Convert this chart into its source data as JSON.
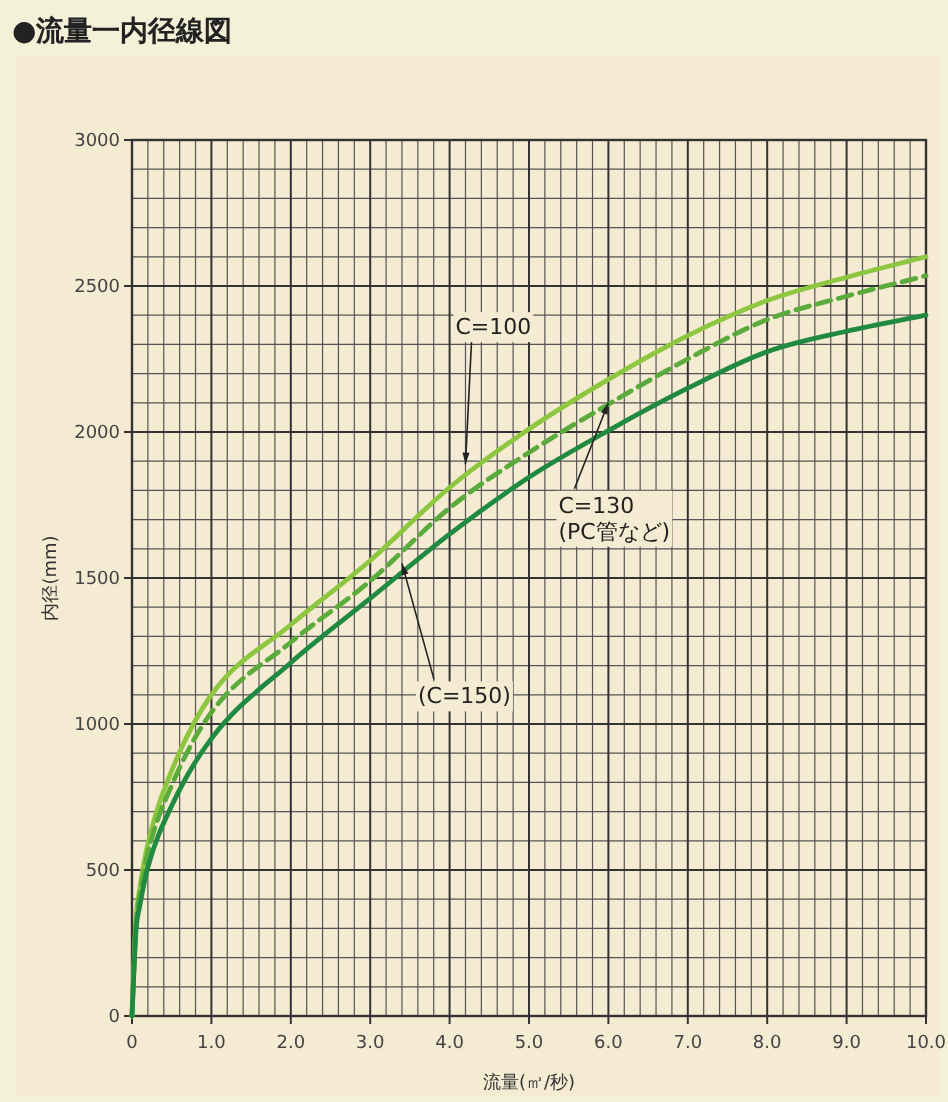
{
  "chart_data": {
    "type": "line",
    "title": "●流量一内径線図",
    "xlabel": "流量(㎥/秒)",
    "ylabel": "内径(mm)",
    "xlim": [
      0,
      10
    ],
    "ylim": [
      0,
      3000
    ],
    "xticks": [
      0,
      {
        "value": 1,
        "label": "1.0"
      },
      {
        "value": 2,
        "label": "2.0"
      },
      {
        "value": 3,
        "label": "3.0"
      },
      {
        "value": 4,
        "label": "4.0"
      },
      {
        "value": 5,
        "label": "5.0"
      },
      {
        "value": 6,
        "label": "6.0"
      },
      {
        "value": 7,
        "label": "7.0"
      },
      {
        "value": 8,
        "label": "8.0"
      },
      {
        "value": 9,
        "label": "9.0"
      },
      {
        "value": 10,
        "label": "10.0"
      }
    ],
    "yticks": [
      0,
      500,
      1000,
      1500,
      2000,
      2500,
      3000
    ],
    "grid": true,
    "marker": "none",
    "x": [
      0,
      0.05,
      0.1,
      0.2,
      0.5,
      1,
      2,
      3,
      4,
      5,
      6,
      7,
      8,
      9,
      10
    ],
    "series": [
      {
        "color": "#8dc63f",
        "line_style": "solid",
        "values": [
          0,
          330,
          440,
          590,
          840,
          1100,
          1340,
          1560,
          1810,
          2010,
          2180,
          2330,
          2450,
          2530,
          2600
        ]
      },
      {
        "color": "#5aab3c",
        "line_style": "dashed",
        "values": [
          0,
          315,
          415,
          560,
          790,
          1040,
          1280,
          1490,
          1740,
          1930,
          2095,
          2250,
          2385,
          2465,
          2535
        ]
      },
      {
        "color": "#1f8a40",
        "line_style": "solid",
        "values": [
          0,
          290,
          380,
          510,
          720,
          950,
          1210,
          1430,
          1650,
          1845,
          2005,
          2150,
          2275,
          2345,
          2400
        ]
      }
    ],
    "annotations": [
      {
        "text": "C=100",
        "x": 4.2,
        "y": 1890
      },
      {
        "text": "C=130\n(PC管など)",
        "x": 6.0,
        "y": 2100
      },
      {
        "text": "(C=150)",
        "x": 3.4,
        "y": 1550
      }
    ]
  }
}
